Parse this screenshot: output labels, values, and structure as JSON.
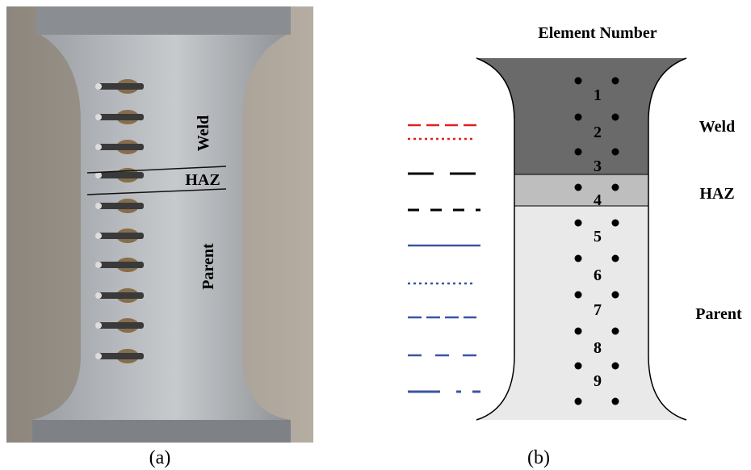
{
  "panel_a": {
    "labels": {
      "weld": "Weld",
      "haz": "HAZ",
      "parent": "Parent"
    },
    "caption": "(a)"
  },
  "panel_b": {
    "title": "Element Number",
    "elements": [
      "1",
      "2",
      "3",
      "4",
      "5",
      "6",
      "7",
      "8",
      "9"
    ],
    "zones": {
      "weld": "Weld",
      "haz": "HAZ",
      "parent": "Parent"
    },
    "caption": "(b)"
  }
}
